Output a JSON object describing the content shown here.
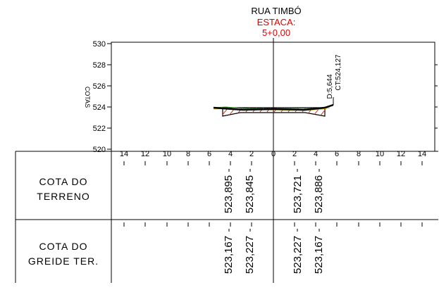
{
  "header": {
    "street": "RUA TIMBÓ",
    "station_label": "ESTACA:",
    "station_value": "5+0,00"
  },
  "axis": {
    "y_label": "COTAS",
    "y_ticks": [
      "530",
      "528",
      "526",
      "524",
      "522",
      "520"
    ],
    "x_ticks": [
      "14",
      "12",
      "10",
      "8",
      "6",
      "4",
      "2",
      "0",
      "2",
      "4",
      "6",
      "8",
      "10",
      "12",
      "14"
    ]
  },
  "callout": {
    "distance": "D:5,644",
    "elevation": "CT:524,127"
  },
  "rows": [
    {
      "label_line1": "COTA DO",
      "label_line2": "TERRENO",
      "values": [
        "523,895",
        "523,845",
        "523,721",
        "523,886"
      ]
    },
    {
      "label_line1": "COTA DO",
      "label_line2": "GREIDE TER.",
      "values": [
        "523,167",
        "523,227",
        "523,227",
        "523,167"
      ]
    }
  ],
  "colors": {
    "line": "#000000",
    "station": "#e00000",
    "hatch": "#e03010",
    "ground_green": "#2a9a2a",
    "ground_yellow": "#d8b000"
  }
}
